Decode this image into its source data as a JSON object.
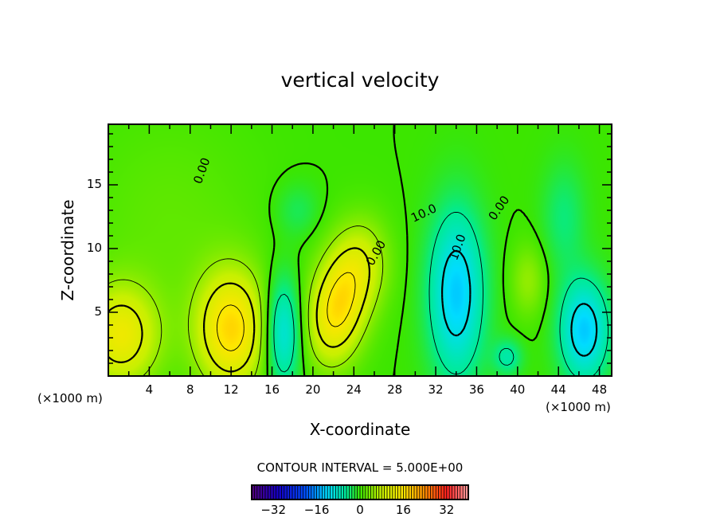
{
  "chart_data": {
    "type": "heatmap",
    "title": "vertical velocity",
    "xlabel": "X-coordinate",
    "ylabel": "Z-coordinate",
    "x_unit": "(×1000 m)",
    "z_unit": "(×1000 m)",
    "xlim": [
      0,
      49.2
    ],
    "ylim": [
      0,
      19.75
    ],
    "x_ticks": [
      4,
      8,
      12,
      16,
      20,
      24,
      28,
      32,
      36,
      40,
      44,
      48
    ],
    "y_ticks": [
      5,
      10,
      15
    ],
    "contour_interval_label": "CONTOUR INTERVAL = 5.000E+00",
    "contour_labels": [
      "0.00",
      "10.0",
      "0.00",
      "10.0",
      "0.00"
    ],
    "colorbar": {
      "range": [
        -40,
        40
      ],
      "ticks": [
        -32,
        -16,
        0,
        16,
        32
      ]
    },
    "field_features": [
      {
        "x": 1.2,
        "z": 3.2,
        "w": 13,
        "sx": 2.6,
        "sz": 2.8
      },
      {
        "x": 12.0,
        "z": 3.7,
        "w": 17,
        "sx": 2.4,
        "sz": 3.2
      },
      {
        "x": 17.0,
        "z": 3.5,
        "w": -11,
        "sx": 1.3,
        "sz": 3.0
      },
      {
        "x": 21.5,
        "z": 4.0,
        "w": 9,
        "sx": 1.8,
        "sz": 2.6
      },
      {
        "x": 23.0,
        "z": 6.5,
        "w": 11,
        "sx": 1.8,
        "sz": 2.8
      },
      {
        "x": 25.0,
        "z": 9.0,
        "w": 7,
        "sx": 1.8,
        "sz": 2.5
      },
      {
        "x": 34.0,
        "z": 6.5,
        "w": -13,
        "sx": 1.9,
        "sz": 4.6
      },
      {
        "x": 46.5,
        "z": 3.6,
        "w": -13,
        "sx": 1.7,
        "sz": 2.8
      },
      {
        "x": 39.0,
        "z": 1.5,
        "w": -6,
        "sx": 1.0,
        "sz": 1.0
      },
      {
        "x": 41.0,
        "z": 7.5,
        "w": 5,
        "sx": 1.2,
        "sz": 2.0
      },
      {
        "x": 44.5,
        "z": 12.5,
        "w": -4,
        "sx": 1.5,
        "sz": 3.0
      },
      {
        "x": 18.5,
        "z": 13.0,
        "w": -3,
        "sx": 1.5,
        "sz": 1.5
      },
      {
        "x": 6.0,
        "z": 12.0,
        "w": 2,
        "sx": 6.0,
        "sz": 6.0
      }
    ]
  }
}
